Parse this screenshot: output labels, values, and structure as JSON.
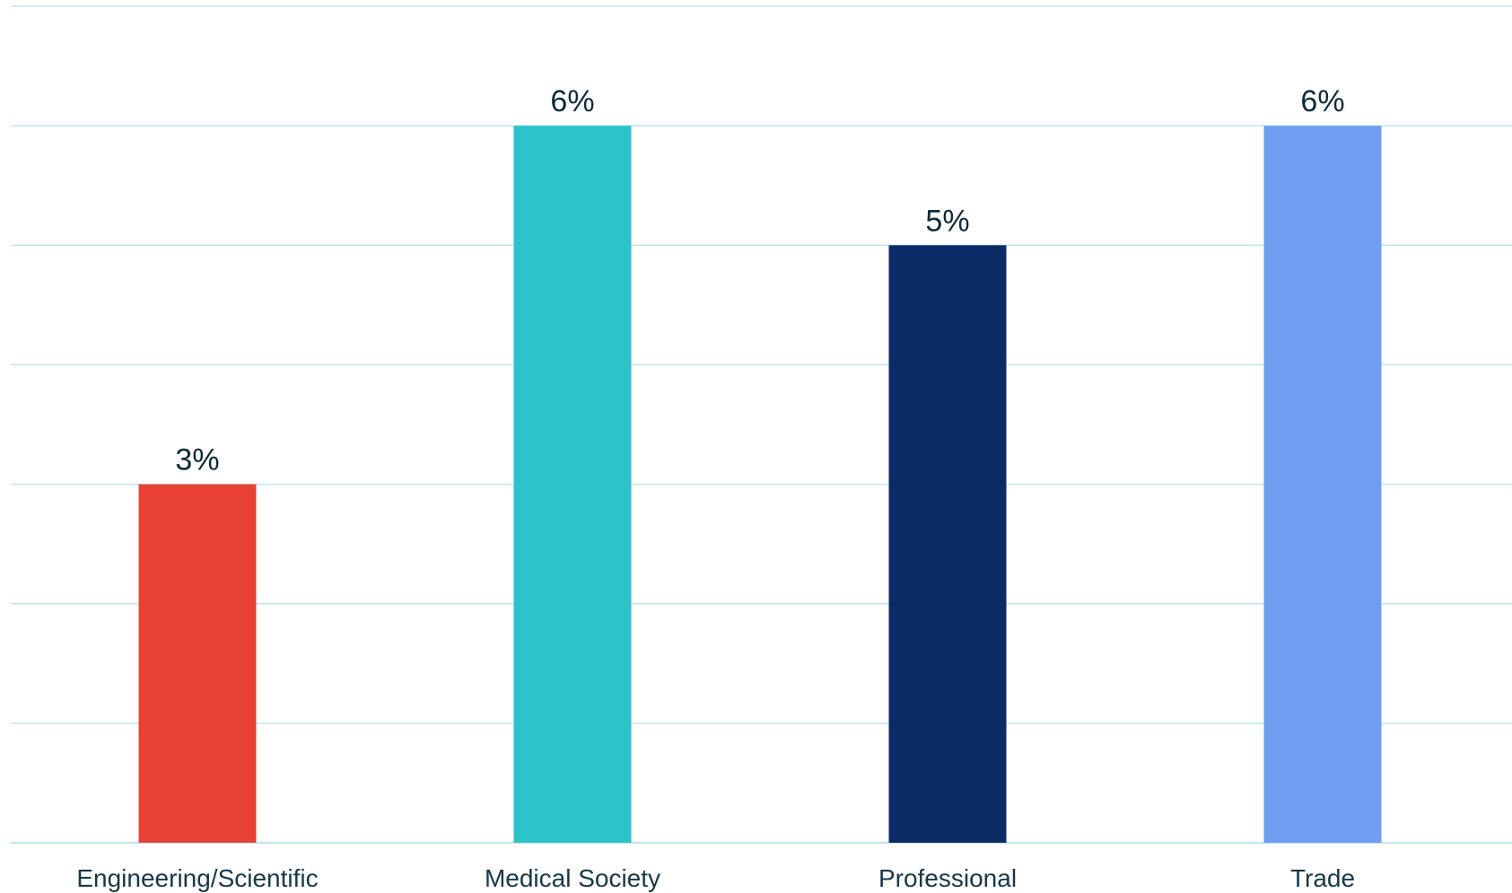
{
  "chart_data": {
    "type": "bar",
    "categories": [
      "Engineering/Scientific",
      "Medical Society",
      "Professional",
      "Trade"
    ],
    "values": [
      3,
      6,
      5,
      6
    ],
    "data_labels": [
      "3%",
      "6%",
      "5%",
      "6%"
    ],
    "colors": [
      "#e84133",
      "#2cc2c8",
      "#0c2a66",
      "#6f9ef1"
    ],
    "grid_color": "#bde6f1",
    "ylim": [
      0,
      7
    ],
    "grid": true,
    "title": "",
    "xlabel": "",
    "ylabel": ""
  }
}
